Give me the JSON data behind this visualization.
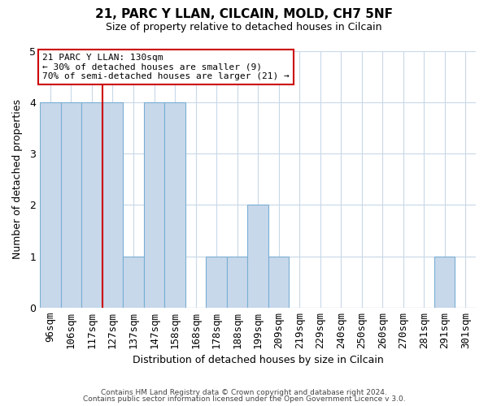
{
  "title": "21, PARC Y LLAN, CILCAIN, MOLD, CH7 5NF",
  "subtitle": "Size of property relative to detached houses in Cilcain",
  "xlabel": "Distribution of detached houses by size in Cilcain",
  "ylabel": "Number of detached properties",
  "bin_labels": [
    "96sqm",
    "106sqm",
    "117sqm",
    "127sqm",
    "137sqm",
    "147sqm",
    "158sqm",
    "168sqm",
    "178sqm",
    "188sqm",
    "199sqm",
    "209sqm",
    "219sqm",
    "229sqm",
    "240sqm",
    "250sqm",
    "260sqm",
    "270sqm",
    "281sqm",
    "291sqm",
    "301sqm"
  ],
  "bar_heights": [
    4,
    4,
    4,
    4,
    1,
    4,
    4,
    0,
    1,
    1,
    2,
    1,
    0,
    0,
    0,
    0,
    0,
    0,
    0,
    1,
    0
  ],
  "bar_color": "#c8d8eb",
  "bar_edge_color": "#7aafd4",
  "red_line_after_index": 2,
  "annotation_title": "21 PARC Y LLAN: 130sqm",
  "annotation_line1": "← 30% of detached houses are smaller (9)",
  "annotation_line2": "70% of semi-detached houses are larger (21) →",
  "ylim": [
    0,
    5
  ],
  "yticks": [
    0,
    1,
    2,
    3,
    4,
    5
  ],
  "footer1": "Contains HM Land Registry data © Crown copyright and database right 2024.",
  "footer2": "Contains public sector information licensed under the Open Government Licence v 3.0.",
  "bg_color": "#ffffff",
  "grid_color": "#c8d8e8",
  "annotation_box_color": "#ffffff",
  "annotation_box_edge": "#cc0000",
  "red_line_color": "#cc0000"
}
